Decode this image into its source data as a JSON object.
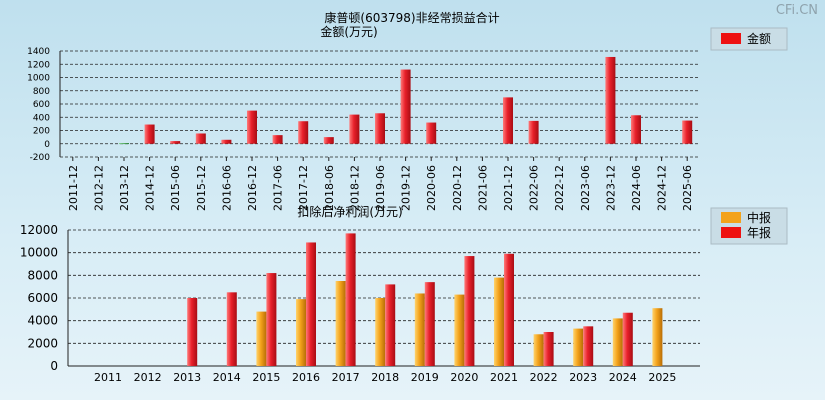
{
  "watermark": "CFi.CN",
  "colors": {
    "red": "#e8202a",
    "orange": "#f3a21b",
    "green": "#2e9b3a"
  },
  "chart_data": [
    {
      "type": "bar",
      "title": "康普顿(603798)非经常损益合计",
      "ylabel": "金额(万元)",
      "legend": [
        "金额"
      ],
      "legend_position": "top-right",
      "ylim": [
        -200,
        1400
      ],
      "yticks": [
        -200,
        0,
        200,
        400,
        600,
        800,
        1000,
        1200,
        1400
      ],
      "grid": true,
      "categories": [
        "2011-12",
        "2012-12",
        "2013-12",
        "2014-12",
        "2015-06",
        "2015-12",
        "2016-06",
        "2016-12",
        "2017-06",
        "2017-12",
        "2018-06",
        "2018-12",
        "2019-06",
        "2019-12",
        "2020-06",
        "2020-12",
        "2021-06",
        "2021-12",
        "2022-06",
        "2022-12",
        "2023-06",
        "2023-12",
        "2024-06",
        "2024-12",
        "2025-06"
      ],
      "series": [
        {
          "name": "金额",
          "values": [
            0,
            0,
            10,
            290,
            40,
            155,
            60,
            500,
            130,
            340,
            100,
            440,
            460,
            1120,
            320,
            0,
            0,
            700,
            345,
            0,
            0,
            1310,
            430,
            0,
            350
          ]
        }
      ]
    },
    {
      "type": "bar",
      "title": "扣除后净利润(万元)",
      "legend": [
        "中报",
        "年报"
      ],
      "legend_position": "top-right",
      "ylim": [
        0,
        12000
      ],
      "yticks": [
        0,
        2000,
        4000,
        6000,
        8000,
        10000,
        12000
      ],
      "grid": true,
      "categories": [
        "2011",
        "2012",
        "2013",
        "2014",
        "2015",
        "2016",
        "2017",
        "2018",
        "2019",
        "2020",
        "2021",
        "2022",
        "2023",
        "2024",
        "2025"
      ],
      "series": [
        {
          "name": "中报",
          "values": [
            null,
            null,
            null,
            null,
            4800,
            5900,
            7500,
            6000,
            6400,
            6300,
            7800,
            2800,
            3300,
            4200,
            5100
          ]
        },
        {
          "name": "年报",
          "values": [
            null,
            null,
            6000,
            6500,
            8200,
            10900,
            11700,
            7200,
            7400,
            9700,
            9900,
            3000,
            3500,
            4700,
            null
          ]
        }
      ]
    }
  ]
}
